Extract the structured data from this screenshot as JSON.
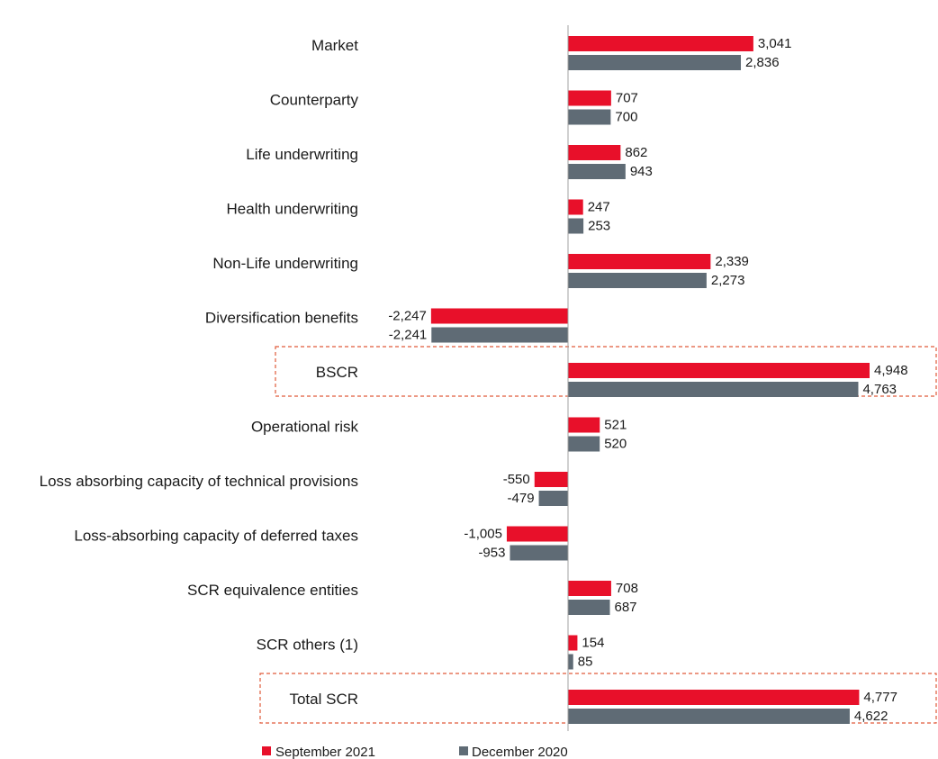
{
  "chart_data": {
    "type": "bar",
    "orientation": "horizontal",
    "categories": [
      "Market",
      "Counterparty",
      "Life underwriting",
      "Health underwriting",
      "Non-Life underwriting",
      "Diversification benefits",
      "BSCR",
      "Operational risk",
      "Loss absorbing capacity of technical provisions",
      "Loss-absorbing capacity of deferred taxes",
      "SCR equivalence entities",
      "SCR others (1)",
      "Total SCR"
    ],
    "series": [
      {
        "name": "September 2021",
        "color": "#e8102a",
        "values": [
          3041,
          707,
          862,
          247,
          2339,
          -2247,
          4948,
          521,
          -550,
          -1005,
          708,
          154,
          4777
        ],
        "labels": [
          "3,041",
          "707",
          "862",
          "247",
          "2,339",
          "-2,247",
          "4,948",
          "521",
          "-550",
          "-1,005",
          "708",
          "154",
          "4,777"
        ]
      },
      {
        "name": "December 2020",
        "color": "#5f6b75",
        "values": [
          2836,
          700,
          943,
          253,
          2273,
          -2241,
          4763,
          520,
          -479,
          -953,
          687,
          85,
          4622
        ],
        "labels": [
          "2,836",
          "700",
          "943",
          "253",
          "2,273",
          "-2,241",
          "4,763",
          "520",
          "-479",
          "-953",
          "687",
          "85",
          "4,622"
        ]
      }
    ],
    "highlighted_categories": [
      "BSCR",
      "Total SCR"
    ],
    "highlight_color": "#e05a3a",
    "axis_color": "#a0a0a0",
    "legend_position": "bottom-left",
    "grid": false
  }
}
